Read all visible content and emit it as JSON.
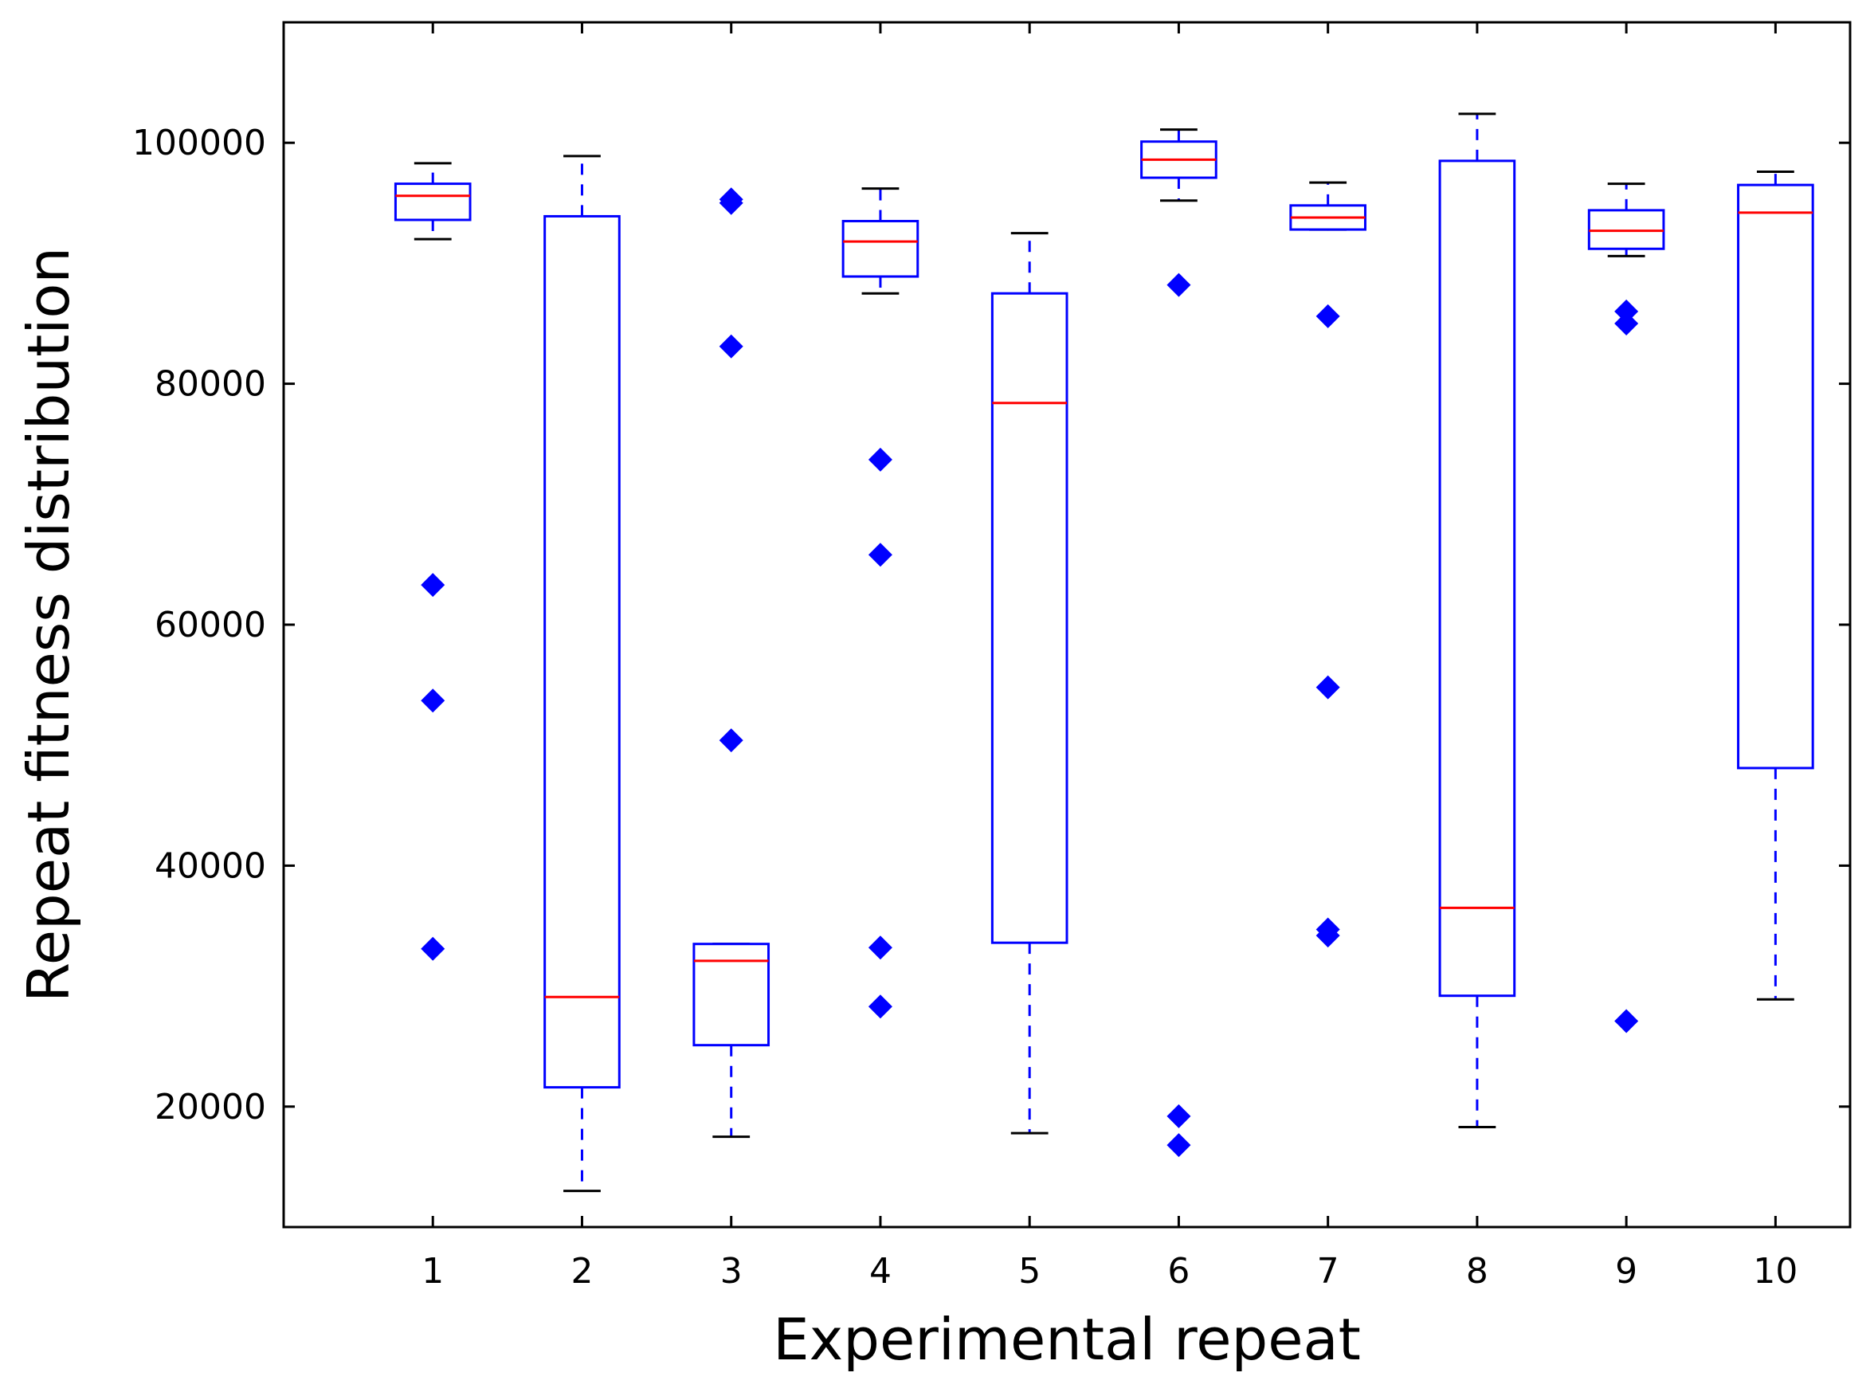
{
  "chart_data": {
    "type": "boxplot",
    "xlabel": "Experimental repeat",
    "ylabel": "Repeat fitness distribution",
    "xlim": [
      0,
      10.5
    ],
    "ylim": [
      10000,
      110000
    ],
    "categories": [
      "1",
      "2",
      "3",
      "4",
      "5",
      "6",
      "7",
      "8",
      "9",
      "10"
    ],
    "yticks": [
      20000,
      40000,
      60000,
      80000,
      100000
    ],
    "ytick_labels": [
      "20000",
      "40000",
      "60000",
      "80000",
      "100000"
    ],
    "colors": {
      "box": "#0000ff",
      "median": "#ff0000",
      "whisker_cap": "#000000",
      "outlier": "#0000ff"
    },
    "boxes": [
      {
        "x": 1,
        "q1": 93600,
        "median": 95600,
        "q3": 96600,
        "whisker_low": 92000,
        "whisker_high": 98300,
        "outliers": [
          63300,
          53700,
          33100
        ]
      },
      {
        "x": 2,
        "q1": 21600,
        "median": 29100,
        "q3": 93900,
        "whisker_low": 13000,
        "whisker_high": 98900,
        "outliers": []
      },
      {
        "x": 3,
        "q1": 25100,
        "median": 32100,
        "q3": 33500,
        "whisker_low": 17500,
        "whisker_high": 33500,
        "outliers": [
          95300,
          95000,
          83100,
          50400
        ]
      },
      {
        "x": 4,
        "q1": 88900,
        "median": 91800,
        "q3": 93500,
        "whisker_low": 87500,
        "whisker_high": 96200,
        "outliers": [
          73700,
          65800,
          33200,
          28300
        ]
      },
      {
        "x": 5,
        "q1": 33600,
        "median": 78400,
        "q3": 87500,
        "whisker_low": 17800,
        "whisker_high": 92500,
        "outliers": []
      },
      {
        "x": 6,
        "q1": 97100,
        "median": 98600,
        "q3": 100100,
        "whisker_low": 95200,
        "whisker_high": 101100,
        "outliers": [
          88200,
          19200,
          16800
        ]
      },
      {
        "x": 7,
        "q1": 92800,
        "median": 93800,
        "q3": 94800,
        "whisker_low": 92800,
        "whisker_high": 96700,
        "outliers": [
          85600,
          54800,
          34700,
          34200
        ]
      },
      {
        "x": 8,
        "q1": 29200,
        "median": 36500,
        "q3": 98500,
        "whisker_low": 18300,
        "whisker_high": 102400,
        "outliers": []
      },
      {
        "x": 9,
        "q1": 91200,
        "median": 92700,
        "q3": 94400,
        "whisker_low": 90600,
        "whisker_high": 96600,
        "outliers": [
          86000,
          85000,
          27100
        ]
      },
      {
        "x": 10,
        "q1": 48100,
        "median": 94200,
        "q3": 96500,
        "whisker_low": 28900,
        "whisker_high": 97600,
        "outliers": []
      }
    ]
  }
}
